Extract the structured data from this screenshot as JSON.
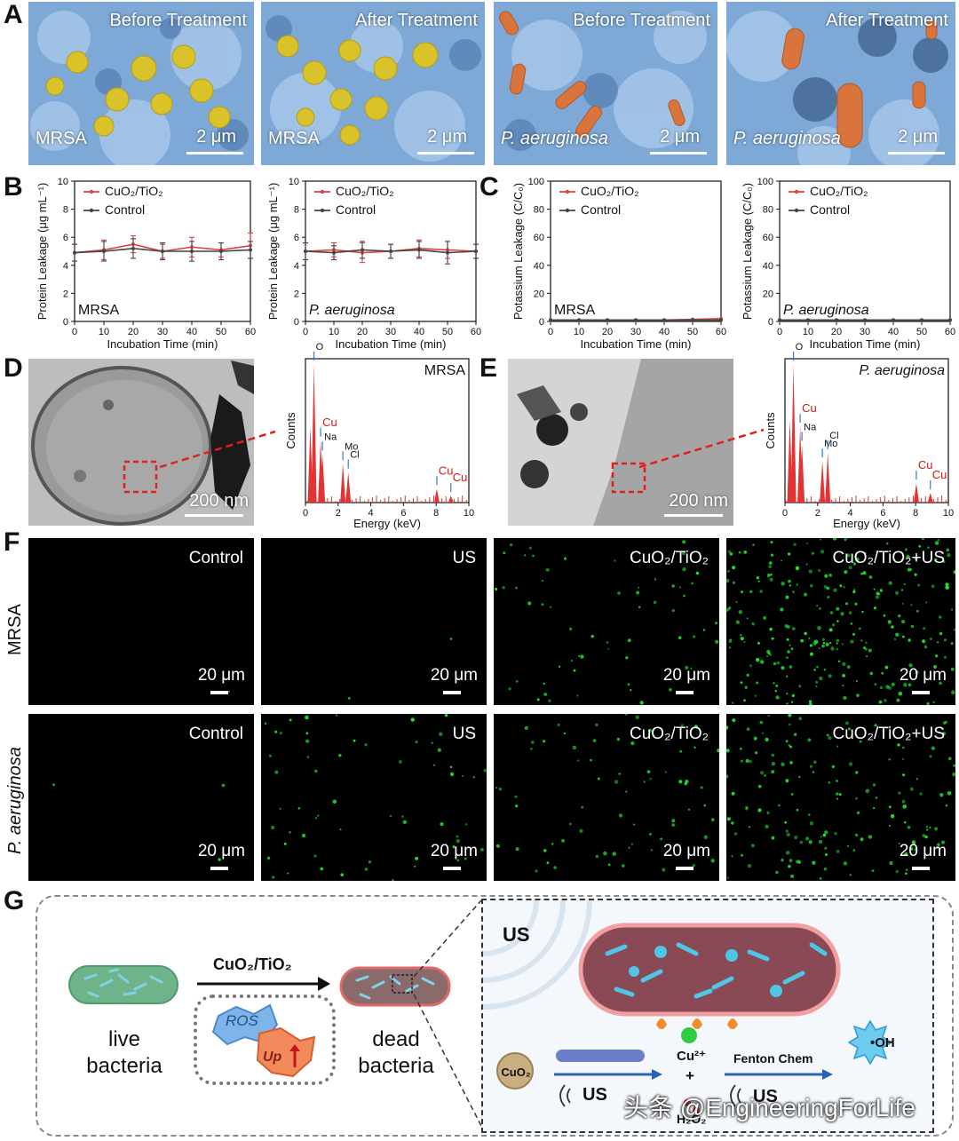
{
  "panels": {
    "A": "A",
    "B": "B",
    "C": "C",
    "D": "D",
    "E": "E",
    "F": "F",
    "G": "G"
  },
  "panel_A": {
    "images": [
      {
        "title": "Before Treatment",
        "organism": "MRSA",
        "scale": "2 μm"
      },
      {
        "title": "After Treatment",
        "organism": "MRSA",
        "scale": "2 μm"
      },
      {
        "title": "Before Treatment",
        "organism": "P. aeruginosa",
        "scale": "2 μm"
      },
      {
        "title": "After Treatment",
        "organism": "P. aeruginosa",
        "scale": "2 μm"
      }
    ],
    "colors": {
      "background": "#7ea9d6",
      "cocci": "#d9c22a",
      "rods": "#d9743c"
    }
  },
  "legend": {
    "cuo2": "CuO₂/TiO₂",
    "control": "Control"
  },
  "chart_data": [
    {
      "type": "line",
      "panel": "B",
      "title": "",
      "annotation": "MRSA",
      "xlabel": "Incubation Time (min)",
      "ylabel": "Protein Leakage (μg mL⁻¹)",
      "xlim": [
        0,
        60
      ],
      "ylim": [
        0,
        10
      ],
      "xticks": [
        0,
        10,
        20,
        30,
        40,
        50,
        60
      ],
      "yticks": [
        0,
        2,
        4,
        6,
        8,
        10
      ],
      "series": [
        {
          "name": "CuO₂/TiO₂",
          "color": "#e04040",
          "x": [
            0,
            10,
            20,
            30,
            40,
            50,
            60
          ],
          "y": [
            4.9,
            5.1,
            5.5,
            5.0,
            5.3,
            5.1,
            5.4
          ],
          "err": [
            0.6,
            0.7,
            0.6,
            0.5,
            0.7,
            0.5,
            0.9
          ]
        },
        {
          "name": "Control",
          "color": "#444444",
          "x": [
            0,
            10,
            20,
            30,
            40,
            50,
            60
          ],
          "y": [
            4.9,
            5.0,
            5.2,
            5.0,
            5.0,
            5.0,
            5.1
          ],
          "err": [
            0.6,
            0.7,
            0.7,
            0.6,
            0.7,
            0.6,
            0.6
          ]
        }
      ]
    },
    {
      "type": "line",
      "panel": "B2",
      "title": "",
      "annotation": "P. aeruginosa",
      "xlabel": "Incubation Time (min)",
      "ylabel": "Protein Leakage (μg mL⁻¹)",
      "xlim": [
        0,
        60
      ],
      "ylim": [
        0,
        10
      ],
      "xticks": [
        0,
        10,
        20,
        30,
        40,
        50,
        60
      ],
      "yticks": [
        0,
        2,
        4,
        6,
        8,
        10
      ],
      "series": [
        {
          "name": "CuO₂/TiO₂",
          "color": "#e04040",
          "x": [
            0,
            10,
            20,
            30,
            40,
            50,
            60
          ],
          "y": [
            5.0,
            5.1,
            4.9,
            5.0,
            5.2,
            5.1,
            5.0
          ],
          "err": [
            0.6,
            0.5,
            0.7,
            0.5,
            0.6,
            0.6,
            0.5
          ]
        },
        {
          "name": "Control",
          "color": "#444444",
          "x": [
            0,
            10,
            20,
            30,
            40,
            50,
            60
          ],
          "y": [
            5.0,
            4.9,
            5.1,
            5.0,
            5.1,
            4.9,
            5.0
          ],
          "err": [
            0.6,
            0.5,
            0.6,
            0.5,
            0.6,
            0.8,
            0.5
          ]
        }
      ]
    },
    {
      "type": "line",
      "panel": "C",
      "title": "",
      "annotation": "MRSA",
      "xlabel": "Incubation Time (min)",
      "ylabel": "Potassium Leakage (C/C₀)",
      "xlim": [
        0,
        60
      ],
      "ylim": [
        0,
        100
      ],
      "xticks": [
        0,
        10,
        20,
        30,
        40,
        50,
        60
      ],
      "yticks": [
        0,
        20,
        40,
        60,
        80,
        100
      ],
      "series": [
        {
          "name": "CuO₂/TiO₂",
          "color": "#e04040",
          "x": [
            0,
            10,
            20,
            30,
            40,
            50,
            60
          ],
          "y": [
            1,
            1,
            1,
            1,
            1,
            1.5,
            2
          ],
          "err": [
            0,
            0,
            0,
            0,
            0,
            0,
            0
          ]
        },
        {
          "name": "Control",
          "color": "#444444",
          "x": [
            0,
            10,
            20,
            30,
            40,
            50,
            60
          ],
          "y": [
            1,
            1,
            1,
            1,
            1,
            1,
            1
          ],
          "err": [
            0,
            0,
            0,
            0,
            0,
            0,
            0
          ]
        }
      ]
    },
    {
      "type": "line",
      "panel": "C2",
      "title": "",
      "annotation": "P. aeruginosa",
      "xlabel": "Incubation Time (min)",
      "ylabel": "Potassium Leakage (C/C₀)",
      "xlim": [
        0,
        60
      ],
      "ylim": [
        0,
        100
      ],
      "xticks": [
        0,
        10,
        20,
        30,
        40,
        50,
        60
      ],
      "yticks": [
        0,
        20,
        40,
        60,
        80,
        100
      ],
      "series": [
        {
          "name": "CuO₂/TiO₂",
          "color": "#e04040",
          "x": [
            0,
            10,
            20,
            30,
            40,
            50,
            60
          ],
          "y": [
            1,
            1,
            1,
            1,
            1,
            1,
            1
          ],
          "err": [
            0,
            0,
            0,
            0,
            0,
            0,
            0
          ]
        },
        {
          "name": "Control",
          "color": "#444444",
          "x": [
            0,
            10,
            20,
            30,
            40,
            50,
            60
          ],
          "y": [
            1,
            1,
            1,
            1,
            1,
            1,
            1
          ],
          "err": [
            0,
            0,
            0,
            0,
            0,
            0,
            0
          ]
        }
      ]
    },
    {
      "type": "bar",
      "panel": "D-EDS",
      "title": "",
      "annotation": "MRSA",
      "xlabel": "Energy (keV)",
      "ylabel": "Counts",
      "xlim": [
        0,
        10
      ],
      "xticks": [
        0,
        2,
        4,
        6,
        8,
        10
      ],
      "peaks": [
        {
          "x": 0.3,
          "h": 0.55
        },
        {
          "x": 0.52,
          "h": 1.0,
          "label": "O"
        },
        {
          "x": 0.93,
          "h": 0.45,
          "label": "Cu",
          "red": true
        },
        {
          "x": 1.04,
          "h": 0.35,
          "label": "Na"
        },
        {
          "x": 2.29,
          "h": 0.28,
          "label": "Mo"
        },
        {
          "x": 2.62,
          "h": 0.22,
          "label": "Cl"
        },
        {
          "x": 8.04,
          "h": 0.1,
          "label": "Cu",
          "red": true
        },
        {
          "x": 8.9,
          "h": 0.05,
          "label": "Cu",
          "red": true
        }
      ]
    },
    {
      "type": "bar",
      "panel": "E-EDS",
      "title": "",
      "annotation": "P. aeruginosa",
      "xlabel": "Energy (keV)",
      "ylabel": "Counts",
      "xlim": [
        0,
        10
      ],
      "xticks": [
        0,
        2,
        4,
        6,
        8,
        10
      ],
      "peaks": [
        {
          "x": 0.3,
          "h": 0.6
        },
        {
          "x": 0.52,
          "h": 1.0,
          "label": "O"
        },
        {
          "x": 0.93,
          "h": 0.55,
          "label": "Cu",
          "red": true
        },
        {
          "x": 1.04,
          "h": 0.42,
          "label": "Na"
        },
        {
          "x": 2.29,
          "h": 0.3,
          "label": "Mo"
        },
        {
          "x": 2.62,
          "h": 0.36,
          "label": "Cl"
        },
        {
          "x": 8.04,
          "h": 0.14,
          "label": "Cu",
          "red": true
        },
        {
          "x": 8.9,
          "h": 0.07,
          "label": "Cu",
          "red": true
        }
      ]
    }
  ],
  "panel_D": {
    "scale": "200 nm"
  },
  "panel_E": {
    "scale": "200 nm"
  },
  "panel_F": {
    "rows": [
      "MRSA",
      "P. aeruginosa"
    ],
    "columns": [
      "Control",
      "US",
      "CuO₂/TiO₂",
      "CuO₂/TiO₂+US"
    ],
    "scale": "20 μm",
    "dot_density": [
      [
        1,
        2,
        60,
        260
      ],
      [
        3,
        60,
        70,
        160
      ]
    ],
    "dot_color": "#22dd33"
  },
  "panel_G": {
    "live": "live\nbacteria",
    "dead": "dead\nbacteria",
    "arrow_label": "CuO₂/TiO₂",
    "ros": "ROS",
    "up": "Up",
    "us": "US",
    "cuo2": "CuO₂",
    "cu_ion": "Cu²⁺",
    "plus": "+",
    "h2o2": "H₂O₂",
    "fenton": "Fenton Chem",
    "us2": "US",
    "us3": "US",
    "oh": "•OH"
  },
  "watermark": "头条 @EngineeringForLife"
}
